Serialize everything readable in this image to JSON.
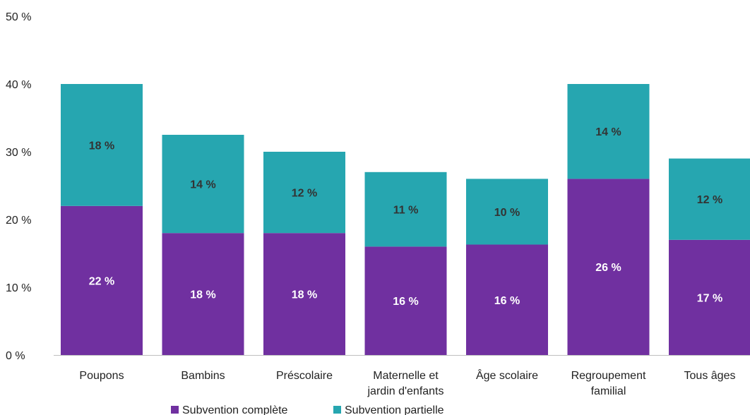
{
  "chart_data": {
    "type": "bar",
    "stacked": true,
    "categories": [
      [
        "Poupons"
      ],
      [
        "Bambins"
      ],
      [
        "Préscolaire"
      ],
      [
        "Maternelle et",
        "jardin d'enfants"
      ],
      [
        "Âge scolaire"
      ],
      [
        "Regroupement",
        "familial"
      ],
      [
        "Tous âges"
      ]
    ],
    "series": [
      {
        "name": "Subvention complète",
        "color": "#7030a0",
        "values": [
          22,
          18,
          18,
          16,
          16.3,
          26,
          17
        ],
        "labels": [
          "22 %",
          "18 %",
          "18 %",
          "16 %",
          "16 %",
          "26 %",
          "17 %"
        ]
      },
      {
        "name": "Subvention partielle",
        "color": "#26a6b0",
        "values": [
          18,
          14.5,
          12,
          11,
          9.7,
          14,
          12
        ],
        "labels": [
          "18 %",
          "14 %",
          "12 %",
          "11 %",
          "10 %",
          "14 %",
          "12 %"
        ]
      }
    ],
    "yticks": [
      "0 %",
      "10 %",
      "20 %",
      "30 %",
      "40 %",
      "50 %"
    ],
    "ylim": [
      0,
      50
    ],
    "xlabel": "",
    "ylabel": "",
    "grid": false,
    "legend_position": "bottom"
  }
}
